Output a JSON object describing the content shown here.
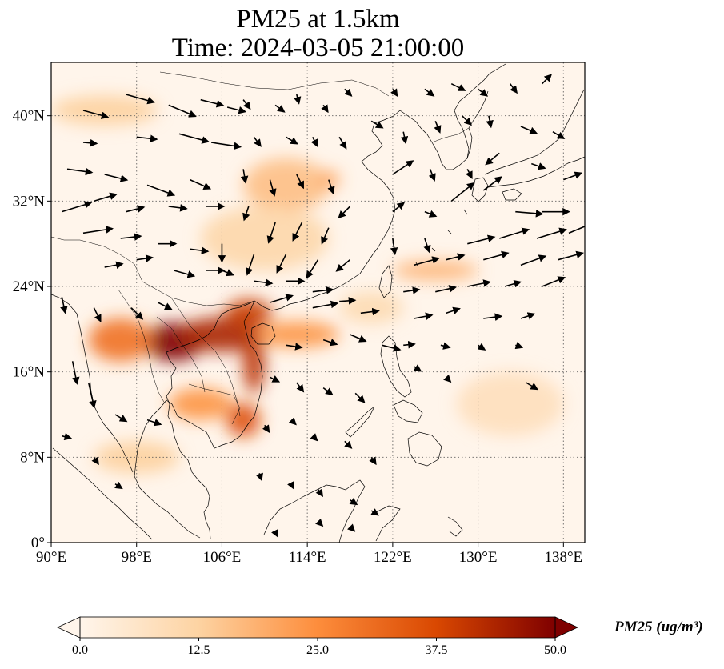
{
  "title": {
    "line1": "PM25 at 1.5km",
    "line2": "Time: 2024-03-05 21:00:00"
  },
  "map": {
    "extent": {
      "lon": [
        90,
        140
      ],
      "lat": [
        0,
        45
      ]
    },
    "lon_ticks": [
      90,
      98,
      106,
      114,
      122,
      130,
      138
    ],
    "lat_ticks": [
      0,
      8,
      16,
      24,
      32,
      40
    ],
    "lon_tick_labels": [
      "90°E",
      "98°E",
      "106°E",
      "114°E",
      "122°E",
      "130°E",
      "138°E"
    ],
    "lat_tick_labels": [
      "0°",
      "8°N",
      "16°N",
      "24°N",
      "32°N",
      "40°N"
    ],
    "gridlines": true,
    "colormap": [
      "#fff5eb",
      "#fdd3a2",
      "#fd8d3c",
      "#d94801",
      "#7f0000"
    ],
    "plumes": [
      {
        "lon": 101.5,
        "lat": 18.8,
        "value": 50,
        "rx": 2.8,
        "ry": 1.8
      },
      {
        "lon": 106.0,
        "lat": 19.5,
        "value": 44,
        "rx": 4.0,
        "ry": 1.6
      },
      {
        "lon": 108.5,
        "lat": 21.5,
        "value": 40,
        "rx": 2.2,
        "ry": 1.3
      },
      {
        "lon": 109.0,
        "lat": 17.0,
        "value": 42,
        "rx": 1.0,
        "ry": 3.0
      },
      {
        "lon": 108.0,
        "lat": 11.5,
        "value": 36,
        "rx": 1.6,
        "ry": 1.6
      },
      {
        "lon": 96.5,
        "lat": 19.0,
        "value": 30,
        "rx": 3.0,
        "ry": 2.0
      },
      {
        "lon": 113.0,
        "lat": 19.5,
        "value": 24,
        "rx": 4.0,
        "ry": 1.2
      },
      {
        "lon": 104.0,
        "lat": 13.0,
        "value": 24,
        "rx": 3.0,
        "ry": 1.5
      },
      {
        "lon": 112.0,
        "lat": 33.5,
        "value": 16,
        "rx": 4.0,
        "ry": 2.5
      },
      {
        "lon": 116.0,
        "lat": 34.0,
        "value": 22,
        "rx": 1.0,
        "ry": 0.8
      },
      {
        "lon": 126.0,
        "lat": 25.5,
        "value": 18,
        "rx": 4.0,
        "ry": 0.9
      },
      {
        "lon": 95.0,
        "lat": 40.5,
        "value": 13,
        "rx": 5.0,
        "ry": 1.4
      },
      {
        "lon": 98.0,
        "lat": 8.0,
        "value": 13,
        "rx": 4.0,
        "ry": 1.5
      },
      {
        "lon": 133.0,
        "lat": 13.0,
        "value": 8,
        "rx": 5.0,
        "ry": 3.0
      },
      {
        "lon": 110.0,
        "lat": 28.5,
        "value": 11,
        "rx": 6.0,
        "ry": 3.0
      },
      {
        "lon": 120.0,
        "lat": 22.0,
        "value": 10,
        "rx": 3.0,
        "ry": 1.5
      }
    ],
    "wind_vectors": [
      [
        93,
        40.5,
        2.2,
        -0.6
      ],
      [
        97,
        42,
        2.5,
        -0.7
      ],
      [
        101,
        41,
        2.4,
        -1.0
      ],
      [
        104,
        41.5,
        2.0,
        -0.5
      ],
      [
        106.5,
        40.8,
        1.6,
        -0.4
      ],
      [
        93,
        37.5,
        1.2,
        -0.1
      ],
      [
        98,
        38,
        1.8,
        -0.2
      ],
      [
        102,
        38.3,
        2.6,
        -0.7
      ],
      [
        105,
        37.5,
        2.6,
        -0.4
      ],
      [
        91.5,
        35,
        2.2,
        -0.3
      ],
      [
        95,
        34.5,
        2.0,
        -0.5
      ],
      [
        99,
        33.5,
        2.4,
        -0.9
      ],
      [
        103,
        34,
        1.8,
        -0.8
      ],
      [
        91,
        31,
        2.6,
        0.8
      ],
      [
        94,
        32,
        2.0,
        0.6
      ],
      [
        97,
        31,
        1.6,
        0.4
      ],
      [
        101,
        31.5,
        1.6,
        -0.2
      ],
      [
        104.5,
        31.5,
        1.6,
        0
      ],
      [
        93,
        29,
        2.6,
        0.4
      ],
      [
        96.5,
        28.5,
        1.8,
        0.2
      ],
      [
        100,
        28,
        1.6,
        0
      ],
      [
        103,
        27.5,
        1.6,
        -0.2
      ],
      [
        95,
        25.8,
        1.6,
        0.3
      ],
      [
        98,
        26.5,
        1.4,
        0.2
      ],
      [
        101.5,
        25.5,
        1.8,
        -0.5
      ],
      [
        104.5,
        25.5,
        1.6,
        0
      ],
      [
        91,
        23,
        0.3,
        -1.4
      ],
      [
        94,
        22,
        0.6,
        -1.2
      ],
      [
        97.5,
        22,
        1.0,
        -1.0
      ],
      [
        100,
        22.5,
        1.2,
        -0.6
      ],
      [
        92,
        17,
        0.4,
        -2.0
      ],
      [
        93.5,
        15,
        0.5,
        -2.2
      ],
      [
        96,
        12,
        1.0,
        -0.6
      ],
      [
        99,
        11.5,
        1.2,
        -0.4
      ],
      [
        91,
        10,
        0.8,
        -0.2
      ],
      [
        94,
        8,
        0.4,
        -0.6
      ],
      [
        96,
        5.5,
        0.6,
        -0.4
      ],
      [
        108,
        41.5,
        0.6,
        -0.8
      ],
      [
        111,
        41,
        0.8,
        -0.6
      ],
      [
        113,
        42,
        0.2,
        -0.8
      ],
      [
        115.5,
        41,
        0.4,
        -0.6
      ],
      [
        117.5,
        42.5,
        0.6,
        -0.6
      ],
      [
        109,
        38,
        0.6,
        -0.8
      ],
      [
        112,
        38,
        1.0,
        -0.6
      ],
      [
        114.5,
        38,
        0.4,
        -0.8
      ],
      [
        117,
        38,
        0.6,
        -1.0
      ],
      [
        120,
        39.5,
        1.0,
        -0.6
      ],
      [
        108,
        35,
        0.2,
        -1.2
      ],
      [
        110.5,
        34,
        0.4,
        -1.4
      ],
      [
        113,
        34.5,
        0.6,
        -1.2
      ],
      [
        116,
        34,
        0.4,
        -1.2
      ],
      [
        108.5,
        31.5,
        -0.4,
        -1.2
      ],
      [
        111,
        30,
        -0.6,
        -1.8
      ],
      [
        113.5,
        30,
        -0.8,
        -1.6
      ],
      [
        116,
        29.5,
        -0.6,
        -1.4
      ],
      [
        118,
        31.5,
        -1.0,
        -1.0
      ],
      [
        106,
        28,
        0,
        -1.6
      ],
      [
        109,
        27,
        -0.6,
        -1.8
      ],
      [
        112,
        27,
        -0.8,
        -1.6
      ],
      [
        115,
        26.5,
        -1.0,
        -1.6
      ],
      [
        118,
        26.5,
        -1.2,
        -1.0
      ],
      [
        106,
        25.5,
        1.0,
        -0.4
      ],
      [
        109,
        24.5,
        1.6,
        -0.2
      ],
      [
        112,
        24.5,
        1.6,
        0
      ],
      [
        114.5,
        23.5,
        1.8,
        0.2
      ],
      [
        110.5,
        22.5,
        2.0,
        0.6
      ],
      [
        114.5,
        22,
        2.2,
        0.4
      ],
      [
        117,
        22.6,
        1.4,
        0.1
      ],
      [
        119,
        21.5,
        1.6,
        0.2
      ],
      [
        112,
        18.5,
        1.4,
        -0.2
      ],
      [
        115.5,
        19,
        1.2,
        -0.4
      ],
      [
        118,
        19.5,
        1.4,
        -0.6
      ],
      [
        121,
        18.5,
        1.6,
        -0.4
      ],
      [
        110.5,
        15.5,
        0.8,
        -0.4
      ],
      [
        113,
        15,
        0.6,
        -0.8
      ],
      [
        115.5,
        14.5,
        0.8,
        -0.6
      ],
      [
        118.5,
        14,
        0.8,
        -0.8
      ],
      [
        110,
        11,
        0.4,
        -0.6
      ],
      [
        112.5,
        11.5,
        0.4,
        -0.4
      ],
      [
        114.5,
        10,
        0.4,
        -0.4
      ],
      [
        117.5,
        9.5,
        0.6,
        -0.6
      ],
      [
        120,
        8,
        0.4,
        -0.6
      ],
      [
        109.5,
        6.5,
        0.2,
        -0.6
      ],
      [
        112.5,
        5.5,
        0.2,
        -0.4
      ],
      [
        115,
        5,
        0.4,
        -0.6
      ],
      [
        118,
        4,
        0.6,
        -0.4
      ],
      [
        120,
        3,
        0.6,
        -0.4
      ],
      [
        115,
        2,
        0.4,
        -0.4
      ],
      [
        118,
        1.5,
        0.4,
        -0.4
      ],
      [
        111,
        1,
        0.2,
        -0.4
      ],
      [
        122,
        42.5,
        0.4,
        -0.6
      ],
      [
        125,
        42.5,
        0.8,
        -0.6
      ],
      [
        127.5,
        43,
        1.2,
        -0.6
      ],
      [
        130,
        42.5,
        0.8,
        -0.6
      ],
      [
        133,
        43,
        0.6,
        -0.8
      ],
      [
        136,
        43,
        0.8,
        0.8
      ],
      [
        123,
        38.5,
        0.2,
        -1.0
      ],
      [
        126,
        39.5,
        0.4,
        -1.0
      ],
      [
        128.5,
        40,
        0.8,
        -0.8
      ],
      [
        131,
        40,
        0.2,
        -1.0
      ],
      [
        134,
        39,
        1.4,
        -0.6
      ],
      [
        137,
        38.5,
        1.0,
        -0.6
      ],
      [
        122,
        34.5,
        1.8,
        1.2
      ],
      [
        125.5,
        35,
        0.4,
        -1.0
      ],
      [
        129,
        35,
        0.4,
        -0.8
      ],
      [
        132,
        36.5,
        -1.2,
        -1.0
      ],
      [
        135,
        35.5,
        1.2,
        -0.4
      ],
      [
        138,
        34,
        1.6,
        0.6
      ],
      [
        122,
        31,
        1.0,
        0.8
      ],
      [
        125,
        31,
        1.0,
        -0.4
      ],
      [
        127.5,
        32,
        2.0,
        1.6
      ],
      [
        130.5,
        33,
        1.6,
        1.2
      ],
      [
        133.5,
        31,
        2.4,
        -0.2
      ],
      [
        136,
        31,
        2.4,
        0
      ],
      [
        122,
        28.5,
        0.2,
        -1.4
      ],
      [
        125,
        28.5,
        0.4,
        -1.2
      ],
      [
        129,
        28,
        2.4,
        0.6
      ],
      [
        132,
        28.5,
        2.6,
        0.8
      ],
      [
        135.5,
        28.5,
        2.6,
        0.8
      ],
      [
        138.5,
        29,
        2.4,
        1.0
      ],
      [
        124,
        26,
        2.2,
        0.6
      ],
      [
        127,
        26.5,
        1.6,
        0.4
      ],
      [
        130.5,
        26.5,
        2.2,
        0.6
      ],
      [
        134,
        26,
        2.2,
        0.8
      ],
      [
        137.5,
        26.5,
        2.2,
        0.6
      ],
      [
        123,
        23.5,
        1.4,
        0.2
      ],
      [
        126,
        23.5,
        1.8,
        0.4
      ],
      [
        129,
        24,
        2.0,
        0.4
      ],
      [
        132.5,
        24,
        1.4,
        0.4
      ],
      [
        136,
        24,
        2.0,
        0.8
      ],
      [
        124,
        21,
        1.6,
        0.3
      ],
      [
        127,
        21.5,
        1.2,
        0.4
      ],
      [
        130.5,
        21,
        1.6,
        0.2
      ],
      [
        134,
        21,
        1.2,
        0.4
      ],
      [
        123,
        18.5,
        1.0,
        0.1
      ],
      [
        126.5,
        18.5,
        0.8,
        -0.2
      ],
      [
        130,
        18.5,
        0.6,
        -0.4
      ],
      [
        133.5,
        18.5,
        0.6,
        -0.2
      ],
      [
        124,
        16.5,
        0.6,
        -0.4
      ],
      [
        127,
        15.5,
        0.4,
        -0.4
      ],
      [
        134.5,
        15,
        1.0,
        -0.6
      ]
    ]
  },
  "colorbar": {
    "ticks": [
      0,
      12.5,
      25,
      37.5,
      50
    ],
    "tick_labels": [
      "0.0",
      "12.5",
      "25.0",
      "37.5",
      "50.0"
    ],
    "label": "PM25 (ug/m³)"
  }
}
